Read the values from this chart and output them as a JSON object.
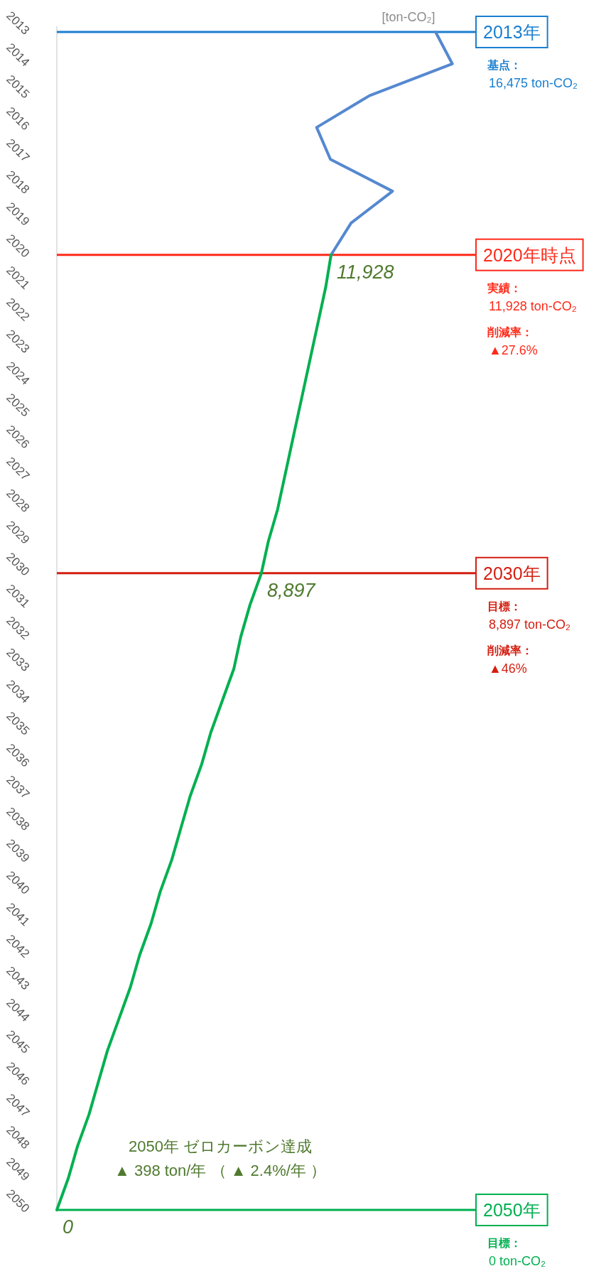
{
  "chart_data": {
    "type": "line",
    "orientation": "horizontal",
    "xlabel": "[ton-CO₂]",
    "categories": [
      "2013",
      "2014",
      "2015",
      "2016",
      "2017",
      "2018",
      "2019",
      "2020",
      "2021",
      "2022",
      "2023",
      "2024",
      "2025",
      "2026",
      "2027",
      "2028",
      "2029",
      "2030",
      "2031",
      "2032",
      "2033",
      "2034",
      "2035",
      "2036",
      "2037",
      "2038",
      "2039",
      "2040",
      "2041",
      "2042",
      "2043",
      "2044",
      "2045",
      "2046",
      "2047",
      "2048",
      "2049",
      "2050"
    ],
    "series": [
      {
        "color": "#5588d0",
        "values": [
          16475,
          17200,
          13600,
          11300,
          11900,
          14600,
          12800,
          11928,
          null,
          null,
          null,
          null,
          null,
          null,
          null,
          null,
          null,
          null,
          null,
          null,
          null,
          null,
          null,
          null,
          null,
          null,
          null,
          null,
          null,
          null,
          null,
          null,
          null,
          null,
          null,
          null,
          null,
          null
        ]
      },
      {
        "color": "#00b050",
        "values": [
          null,
          null,
          null,
          null,
          null,
          null,
          null,
          11928,
          11700,
          11400,
          11100,
          10800,
          10500,
          10200,
          9900,
          9600,
          9200,
          8897,
          8400,
          8000,
          7700,
          7200,
          6700,
          6300,
          5800,
          5400,
          5000,
          4500,
          4100,
          3600,
          3200,
          2700,
          2200,
          1800,
          1400,
          900,
          500,
          0
        ],
        "value_labels": [
          null,
          null,
          null,
          null,
          null,
          null,
          null,
          "11,928",
          null,
          null,
          null,
          null,
          null,
          null,
          null,
          null,
          null,
          "8,897",
          null,
          null,
          null,
          null,
          null,
          null,
          null,
          null,
          null,
          null,
          null,
          null,
          null,
          null,
          null,
          null,
          null,
          null,
          null,
          "0"
        ]
      }
    ],
    "ref_lines": [
      {
        "axis": "y",
        "value": "2013",
        "label": "2013年",
        "color": "#1a7fd0"
      },
      {
        "axis": "y",
        "value": "2020",
        "label": "2020年時点",
        "color": "#ff2a1a"
      },
      {
        "axis": "y",
        "value": "2030",
        "label": "2030年",
        "color": "#d41e10"
      },
      {
        "axis": "y",
        "value": "2050",
        "label": "2050年",
        "color": "#00b050"
      }
    ],
    "annotations": [
      "基点：",
      "16,475 ton-CO₂",
      "実績：",
      "11,928 ton-CO₂",
      "削減率：",
      "▲27.6%",
      "目標：",
      "8,897 ton-CO₂",
      "削減率：",
      "▲46%",
      "目標：",
      "0  ton-CO₂",
      "2050年 ゼロカーボン達成",
      "▲ 398 ton/年 （ ▲ 2.4%/年 ）"
    ]
  }
}
